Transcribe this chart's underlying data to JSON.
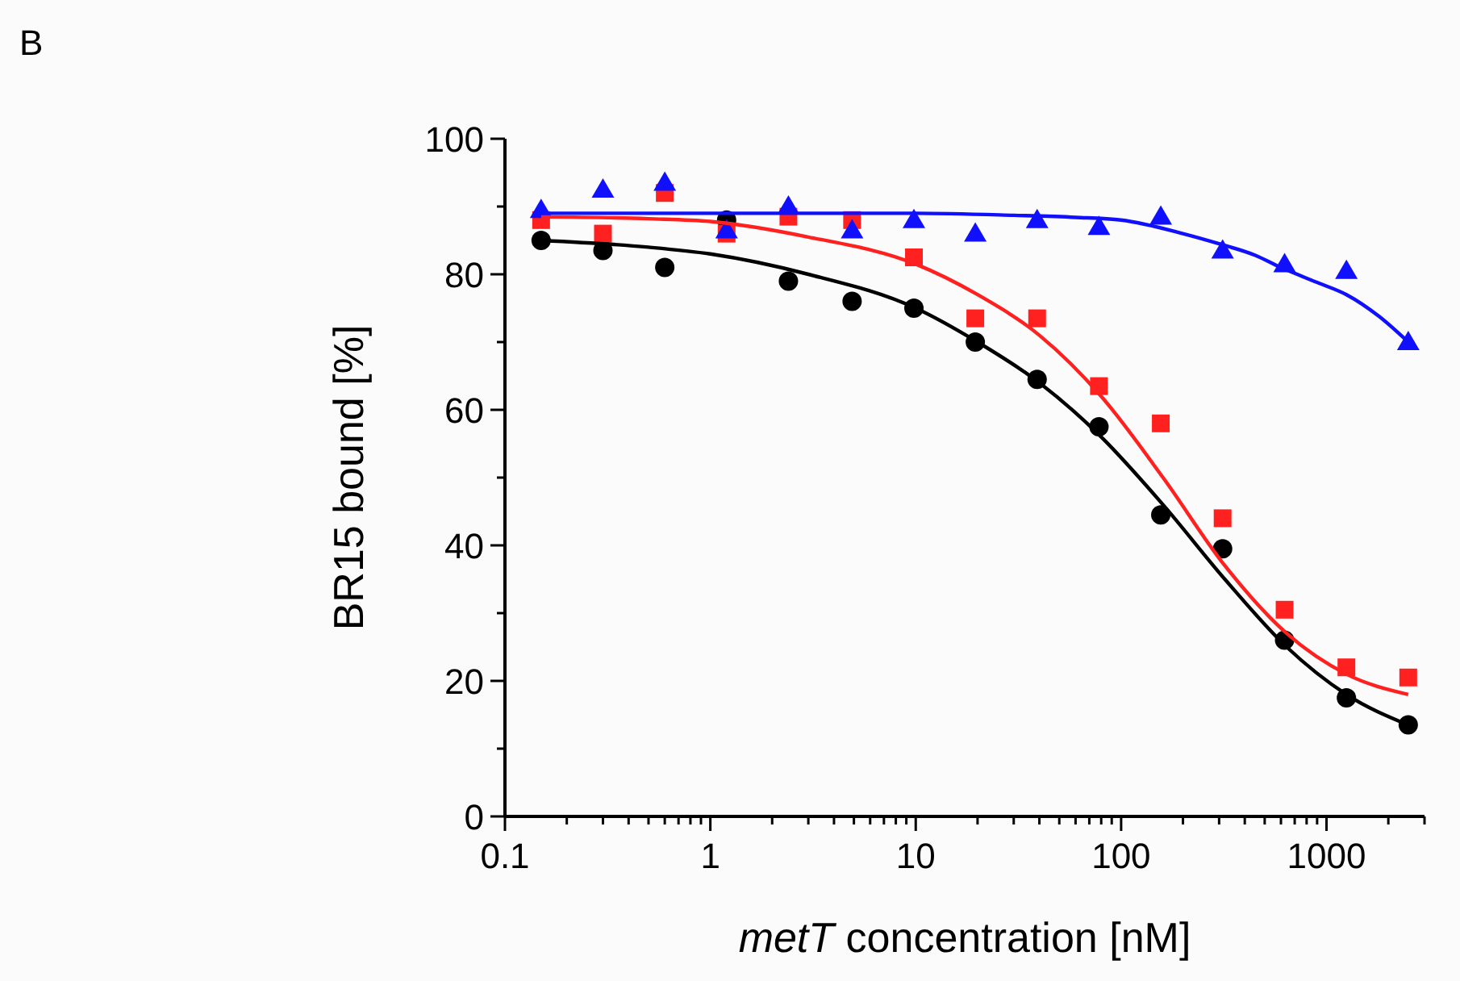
{
  "chart_data": {
    "type": "scatter",
    "xlabel": "metT concentration [nM]",
    "ylabel": "BR15 bound [%]",
    "annotations": [
      "B"
    ],
    "log": "x",
    "grid": false,
    "xlim": [
      0.1,
      3000
    ],
    "xticks": [
      0.1,
      {
        "value": 0.2,
        "label": null
      },
      {
        "value": 0.3,
        "label": null
      },
      {
        "value": 0.4,
        "label": null
      },
      {
        "value": 0.5,
        "label": null
      },
      {
        "value": 0.6,
        "label": null
      },
      {
        "value": 0.7,
        "label": null
      },
      {
        "value": 0.8,
        "label": null
      },
      {
        "value": 0.9,
        "label": null
      },
      1,
      {
        "value": 2,
        "label": null
      },
      {
        "value": 3,
        "label": null
      },
      {
        "value": 4,
        "label": null
      },
      {
        "value": 5,
        "label": null
      },
      {
        "value": 6,
        "label": null
      },
      {
        "value": 7,
        "label": null
      },
      {
        "value": 8,
        "label": null
      },
      {
        "value": 9,
        "label": null
      },
      10,
      {
        "value": 20,
        "label": null
      },
      {
        "value": 30,
        "label": null
      },
      {
        "value": 40,
        "label": null
      },
      {
        "value": 50,
        "label": null
      },
      {
        "value": 60,
        "label": null
      },
      {
        "value": 70,
        "label": null
      },
      {
        "value": 80,
        "label": null
      },
      {
        "value": 90,
        "label": null
      },
      100,
      {
        "value": 200,
        "label": null
      },
      {
        "value": 300,
        "label": null
      },
      {
        "value": 400,
        "label": null
      },
      {
        "value": 500,
        "label": null
      },
      {
        "value": 600,
        "label": null
      },
      {
        "value": 700,
        "label": null
      },
      {
        "value": 800,
        "label": null
      },
      {
        "value": 900,
        "label": null
      },
      1000,
      {
        "value": 2000,
        "label": null
      },
      {
        "value": 3000,
        "label": null
      }
    ],
    "ylim": [
      0,
      100
    ],
    "yticks": [
      0,
      {
        "value": 10,
        "label": null
      },
      20,
      {
        "value": 30,
        "label": null
      },
      40,
      {
        "value": 50,
        "label": null
      },
      60,
      {
        "value": 70,
        "label": null
      },
      80,
      {
        "value": 90,
        "label": null
      },
      100
    ],
    "x": [
      0.15,
      0.3,
      0.6,
      1.2,
      2.4,
      4.9,
      9.8,
      19.5,
      39,
      78,
      156,
      312,
      625,
      1250,
      2500
    ],
    "series": [
      {
        "color": "#000000",
        "marker": "circle",
        "values": [
          85,
          83.5,
          81,
          88,
          79,
          76,
          75,
          70,
          64.5,
          57.5,
          44.5,
          39.5,
          26,
          17.5,
          13.5
        ]
      },
      {
        "color": "#ff2020",
        "marker": "square",
        "values": [
          88,
          86,
          92,
          86,
          88.5,
          88,
          82.5,
          73.5,
          73.5,
          63.5,
          58,
          44,
          30.5,
          22,
          20.5
        ]
      },
      {
        "color": "#1010ff",
        "marker": "triangle",
        "values": [
          89.5,
          92.5,
          93.5,
          86.5,
          90,
          86.5,
          88,
          86,
          88,
          87,
          88.5,
          83.5,
          81.5,
          80.5,
          70
        ]
      },
      {
        "type": "line",
        "color": "#000000",
        "marker": "none",
        "x": [
          0.15,
          0.5,
          1,
          3,
          10,
          20,
          40,
          80,
          160,
          320,
          640,
          1250,
          2500
        ],
        "values": [
          85,
          84,
          83,
          80,
          75,
          70,
          64,
          56,
          46,
          35,
          25,
          18,
          13.5
        ]
      },
      {
        "type": "line",
        "color": "#ff2020",
        "marker": "none",
        "x": [
          0.15,
          0.5,
          1,
          3,
          10,
          20,
          40,
          80,
          160,
          320,
          640,
          1250,
          2500
        ],
        "values": [
          88.5,
          88.2,
          87.8,
          85.5,
          81.5,
          77,
          71,
          62,
          50,
          37,
          27,
          21,
          18
        ]
      },
      {
        "type": "line",
        "color": "#1010ff",
        "marker": "none",
        "x": [
          0.15,
          1,
          10,
          30,
          60,
          100,
          200,
          300,
          450,
          600,
          900,
          1250,
          1800,
          2500
        ],
        "values": [
          89,
          89,
          89,
          88.7,
          88.4,
          88,
          86,
          84.5,
          82.8,
          81,
          78.8,
          77,
          73.8,
          70
        ]
      }
    ]
  }
}
